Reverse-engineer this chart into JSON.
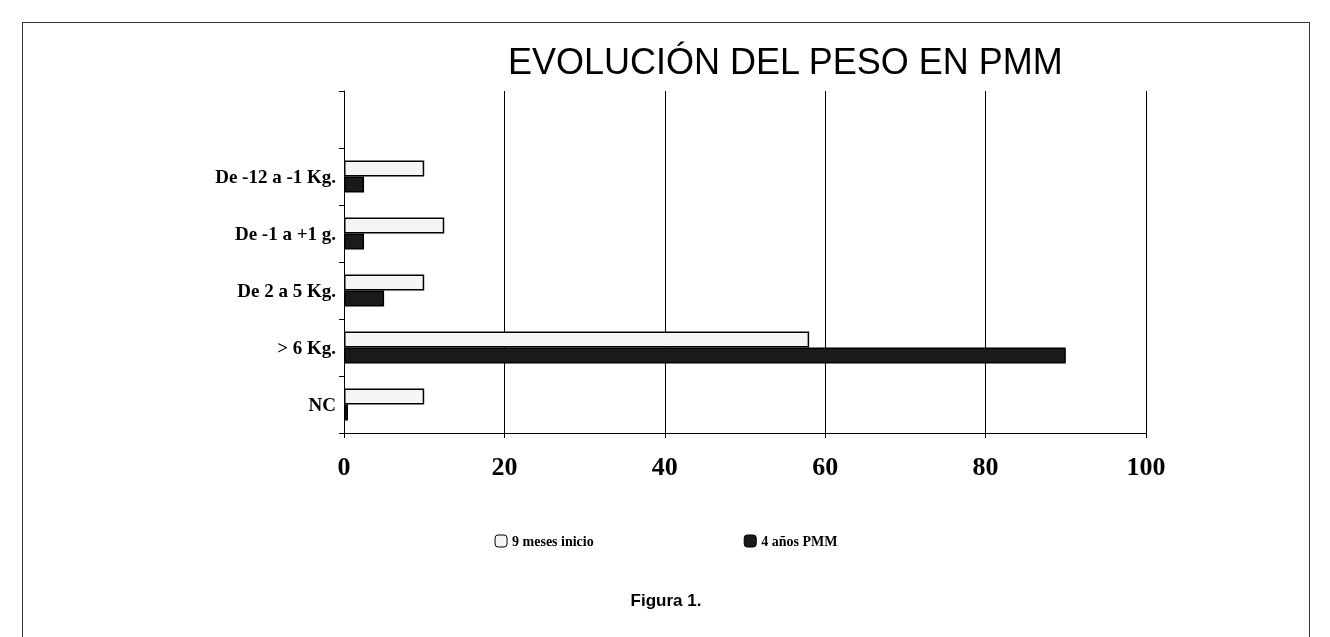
{
  "chart_data": {
    "type": "bar",
    "orientation": "horizontal",
    "title": "EVOLUCIÓN DEL PESO EN PMM",
    "categories": [
      null,
      "De -12 a -1 Kg.",
      "De -1 a +1 g.",
      "De 2 a 5 Kg.",
      "> 6 Kg.",
      "NC"
    ],
    "series": [
      {
        "name": "9 meses inicio",
        "color": "#f5f5f5",
        "values": [
          null,
          10,
          12.5,
          10,
          58,
          10
        ]
      },
      {
        "name": "4 años PMM",
        "color": "#1a1a1a",
        "values": [
          null,
          2.5,
          2.5,
          5,
          90,
          0.5
        ]
      }
    ],
    "xlim": [
      0,
      100
    ],
    "xticks": [
      0,
      20,
      40,
      60,
      80,
      100
    ],
    "grid": "x",
    "legend": "bottom",
    "annotations": [
      "Figura 1."
    ]
  }
}
